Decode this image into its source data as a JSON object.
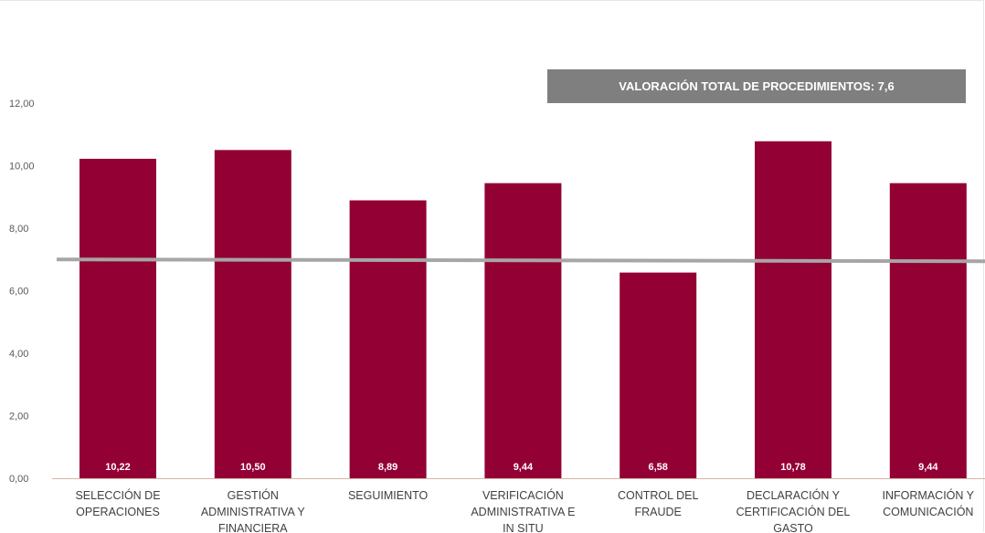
{
  "chart_data": {
    "type": "bar",
    "categories": [
      [
        "SELECCIÓN DE",
        "OPERACIONES"
      ],
      [
        "GESTIÓN",
        "ADMINISTRATIVA Y",
        "FINANCIERA"
      ],
      [
        "SEGUIMIENTO"
      ],
      [
        "VERIFICACIÓN",
        "ADMINISTRATIVA E",
        "IN SITU"
      ],
      [
        "CONTROL DEL",
        "FRAUDE"
      ],
      [
        "DECLARACIÓN Y",
        "CERTIFICACIÓN DEL",
        "GASTO"
      ],
      [
        "INFORMACIÓN Y",
        "COMUNICACIÓN"
      ]
    ],
    "values": [
      10.22,
      10.5,
      8.89,
      9.44,
      6.58,
      10.78,
      9.44
    ],
    "data_labels": [
      "10,22",
      "10,50",
      "8,89",
      "9,44",
      "6,58",
      "10,78",
      "9,44"
    ],
    "yticks": [
      "0,00",
      "2,00",
      "4,00",
      "6,00",
      "8,00",
      "10,00",
      "12,00"
    ],
    "ylim": [
      0,
      12
    ],
    "reference_line": 7.0,
    "annotation": "VALORACIÓN TOTAL DE PROCEDIMIENTOS: 7,6",
    "colors": {
      "bar": "#930033",
      "reference_line": "#a6a6a6",
      "annotation_bg": "#7f7f7f",
      "axis": "#d9b3a8"
    }
  }
}
